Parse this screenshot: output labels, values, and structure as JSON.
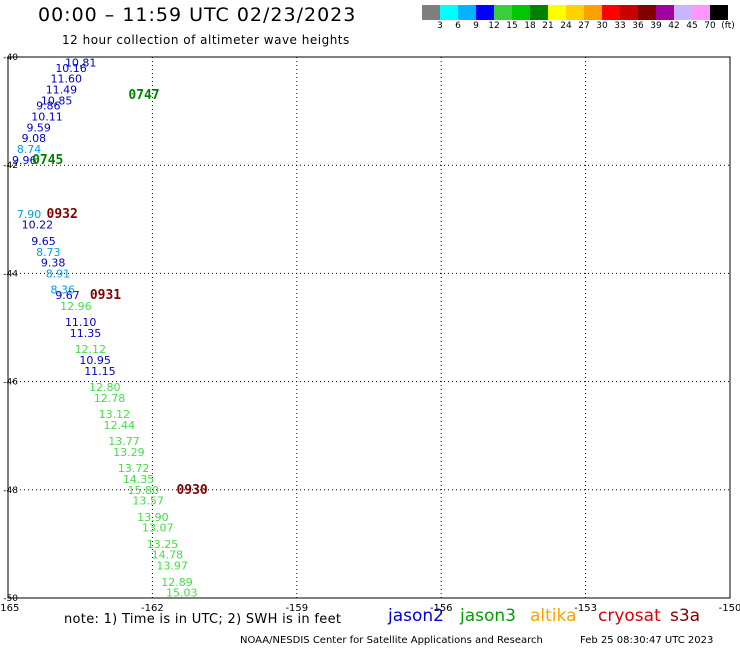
{
  "title": "00:00 – 11:59 UTC 02/23/2023",
  "subtitle": "12 hour collection of altimeter wave heights",
  "colorbar": {
    "colors": [
      "#7f7f7f",
      "#00ffff",
      "#00b4ff",
      "#0000ff",
      "#3ccd3c",
      "#00c800",
      "#008200",
      "#ffff00",
      "#ffd200",
      "#ffa000",
      "#ff0000",
      "#c80000",
      "#820000",
      "#a000a0",
      "#c8b4ff",
      "#ff96ff",
      "#000000"
    ],
    "labels": [
      "3",
      "6",
      "9",
      "12",
      "15",
      "18",
      "21",
      "24",
      "27",
      "30",
      "33",
      "36",
      "39",
      "42",
      "45",
      "70",
      "(ft)"
    ]
  },
  "chart_data": {
    "type": "scatter",
    "xaxis": {
      "ticks": [
        "-165",
        "-162",
        "-159",
        "-156",
        "-153",
        "-150"
      ],
      "range": [
        -165,
        -150
      ]
    },
    "yaxis": {
      "ticks": [
        "-40",
        "-42",
        "-44",
        "-46",
        "-48",
        "-50"
      ],
      "range": [
        -50,
        -40
      ]
    },
    "grid": true,
    "points": [
      {
        "lon": -163.9,
        "lat": -40.1,
        "label": "10.81",
        "color": "#0000c8"
      },
      {
        "lon": -164.1,
        "lat": -40.2,
        "label": "10.16",
        "color": "#0000c8"
      },
      {
        "lon": -164.2,
        "lat": -40.4,
        "label": "11.60",
        "color": "#0000c8"
      },
      {
        "lon": -164.3,
        "lat": -40.6,
        "label": "11.49",
        "color": "#0000c8"
      },
      {
        "lon": -164.4,
        "lat": -40.8,
        "label": "10.85",
        "color": "#0000c8"
      },
      {
        "lon": -164.5,
        "lat": -40.9,
        "label": "9.86",
        "color": "#0000c8"
      },
      {
        "lon": -164.6,
        "lat": -41.1,
        "label": "10.11",
        "color": "#0000c8"
      },
      {
        "lon": -164.7,
        "lat": -41.3,
        "label": "9.59",
        "color": "#0000c8"
      },
      {
        "lon": -164.8,
        "lat": -41.5,
        "label": "9.08",
        "color": "#0000c8"
      },
      {
        "lon": -164.9,
        "lat": -41.7,
        "label": "8.74",
        "color": "#00a0dc"
      },
      {
        "lon": -165.0,
        "lat": -41.9,
        "label": "9.96",
        "color": "#0000c8"
      },
      {
        "lon": -164.9,
        "lat": -42.9,
        "label": "7.90",
        "color": "#00a0dc"
      },
      {
        "lon": -164.8,
        "lat": -43.1,
        "label": "10.22",
        "color": "#0000c8"
      },
      {
        "lon": -164.6,
        "lat": -43.4,
        "label": "9.65",
        "color": "#0000c8"
      },
      {
        "lon": -164.5,
        "lat": -43.6,
        "label": "8.73",
        "color": "#00a0dc"
      },
      {
        "lon": -164.4,
        "lat": -43.8,
        "label": "9.38",
        "color": "#0000c8"
      },
      {
        "lon": -164.3,
        "lat": -44.0,
        "label": "8.91",
        "color": "#00a0dc"
      },
      {
        "lon": -164.2,
        "lat": -44.3,
        "label": "8.36",
        "color": "#00a0dc"
      },
      {
        "lon": -164.1,
        "lat": -44.4,
        "label": "9.67",
        "color": "#0000c8"
      },
      {
        "lon": -164.0,
        "lat": -44.6,
        "label": "12.96",
        "color": "#46dc46"
      },
      {
        "lon": -163.9,
        "lat": -44.9,
        "label": "11.10",
        "color": "#0000c8"
      },
      {
        "lon": -163.8,
        "lat": -45.1,
        "label": "11.35",
        "color": "#0000c8"
      },
      {
        "lon": -163.7,
        "lat": -45.4,
        "label": "12.12",
        "color": "#46dc46"
      },
      {
        "lon": -163.6,
        "lat": -45.6,
        "label": "10.95",
        "color": "#0000c8"
      },
      {
        "lon": -163.5,
        "lat": -45.8,
        "label": "11.15",
        "color": "#0000c8"
      },
      {
        "lon": -163.4,
        "lat": -46.1,
        "label": "12.80",
        "color": "#46dc46"
      },
      {
        "lon": -163.3,
        "lat": -46.3,
        "label": "12.78",
        "color": "#46dc46"
      },
      {
        "lon": -163.2,
        "lat": -46.6,
        "label": "13.12",
        "color": "#46dc46"
      },
      {
        "lon": -163.1,
        "lat": -46.8,
        "label": "12.44",
        "color": "#46dc46"
      },
      {
        "lon": -163.0,
        "lat": -47.1,
        "label": "13.77",
        "color": "#46dc46"
      },
      {
        "lon": -162.9,
        "lat": -47.3,
        "label": "13.29",
        "color": "#46dc46"
      },
      {
        "lon": -162.8,
        "lat": -47.6,
        "label": "13.72",
        "color": "#46dc46"
      },
      {
        "lon": -162.7,
        "lat": -47.8,
        "label": "14.35",
        "color": "#46dc46"
      },
      {
        "lon": -162.6,
        "lat": -48.0,
        "label": "15.80",
        "color": "#46dc46"
      },
      {
        "lon": -162.5,
        "lat": -48.2,
        "label": "13.57",
        "color": "#46dc46"
      },
      {
        "lon": -162.4,
        "lat": -48.5,
        "label": "13.90",
        "color": "#46dc46"
      },
      {
        "lon": -162.3,
        "lat": -48.7,
        "label": "13.07",
        "color": "#46dc46"
      },
      {
        "lon": -162.2,
        "lat": -49.0,
        "label": "13.25",
        "color": "#46dc46"
      },
      {
        "lon": -162.1,
        "lat": -49.2,
        "label": "14.78",
        "color": "#46dc46"
      },
      {
        "lon": -162.0,
        "lat": -49.4,
        "label": "13.97",
        "color": "#46dc46"
      },
      {
        "lon": -161.9,
        "lat": -49.7,
        "label": "12.89",
        "color": "#46dc46"
      },
      {
        "lon": -161.8,
        "lat": -49.9,
        "label": "15.03",
        "color": "#46dc46"
      }
    ],
    "time_labels": [
      {
        "lon": -162.5,
        "lat": -40.7,
        "label": "0747",
        "color": "#008200"
      },
      {
        "lon": -164.5,
        "lat": -41.9,
        "label": "0745",
        "color": "#008200"
      },
      {
        "lon": -164.2,
        "lat": -42.9,
        "label": "0932",
        "color": "#820000"
      },
      {
        "lon": -163.3,
        "lat": -44.4,
        "label": "0931",
        "color": "#820000"
      },
      {
        "lon": -161.5,
        "lat": -48.0,
        "label": "0930",
        "color": "#820000"
      }
    ]
  },
  "note": "note:  1) Time is in UTC; 2) SWH is in feet",
  "satellites": [
    {
      "name": "jason2",
      "color": "#0000dc"
    },
    {
      "name": "jason3",
      "color": "#00a000"
    },
    {
      "name": "altika",
      "color": "#ffa000"
    },
    {
      "name": "cryosat",
      "color": "#dc0000"
    },
    {
      "name": "s3a",
      "color": "#820000"
    }
  ],
  "credit": "NOAA/NESDIS Center for Satellite Applications and Research",
  "timestamp": "Feb 25 08:30:47 UTC 2023"
}
